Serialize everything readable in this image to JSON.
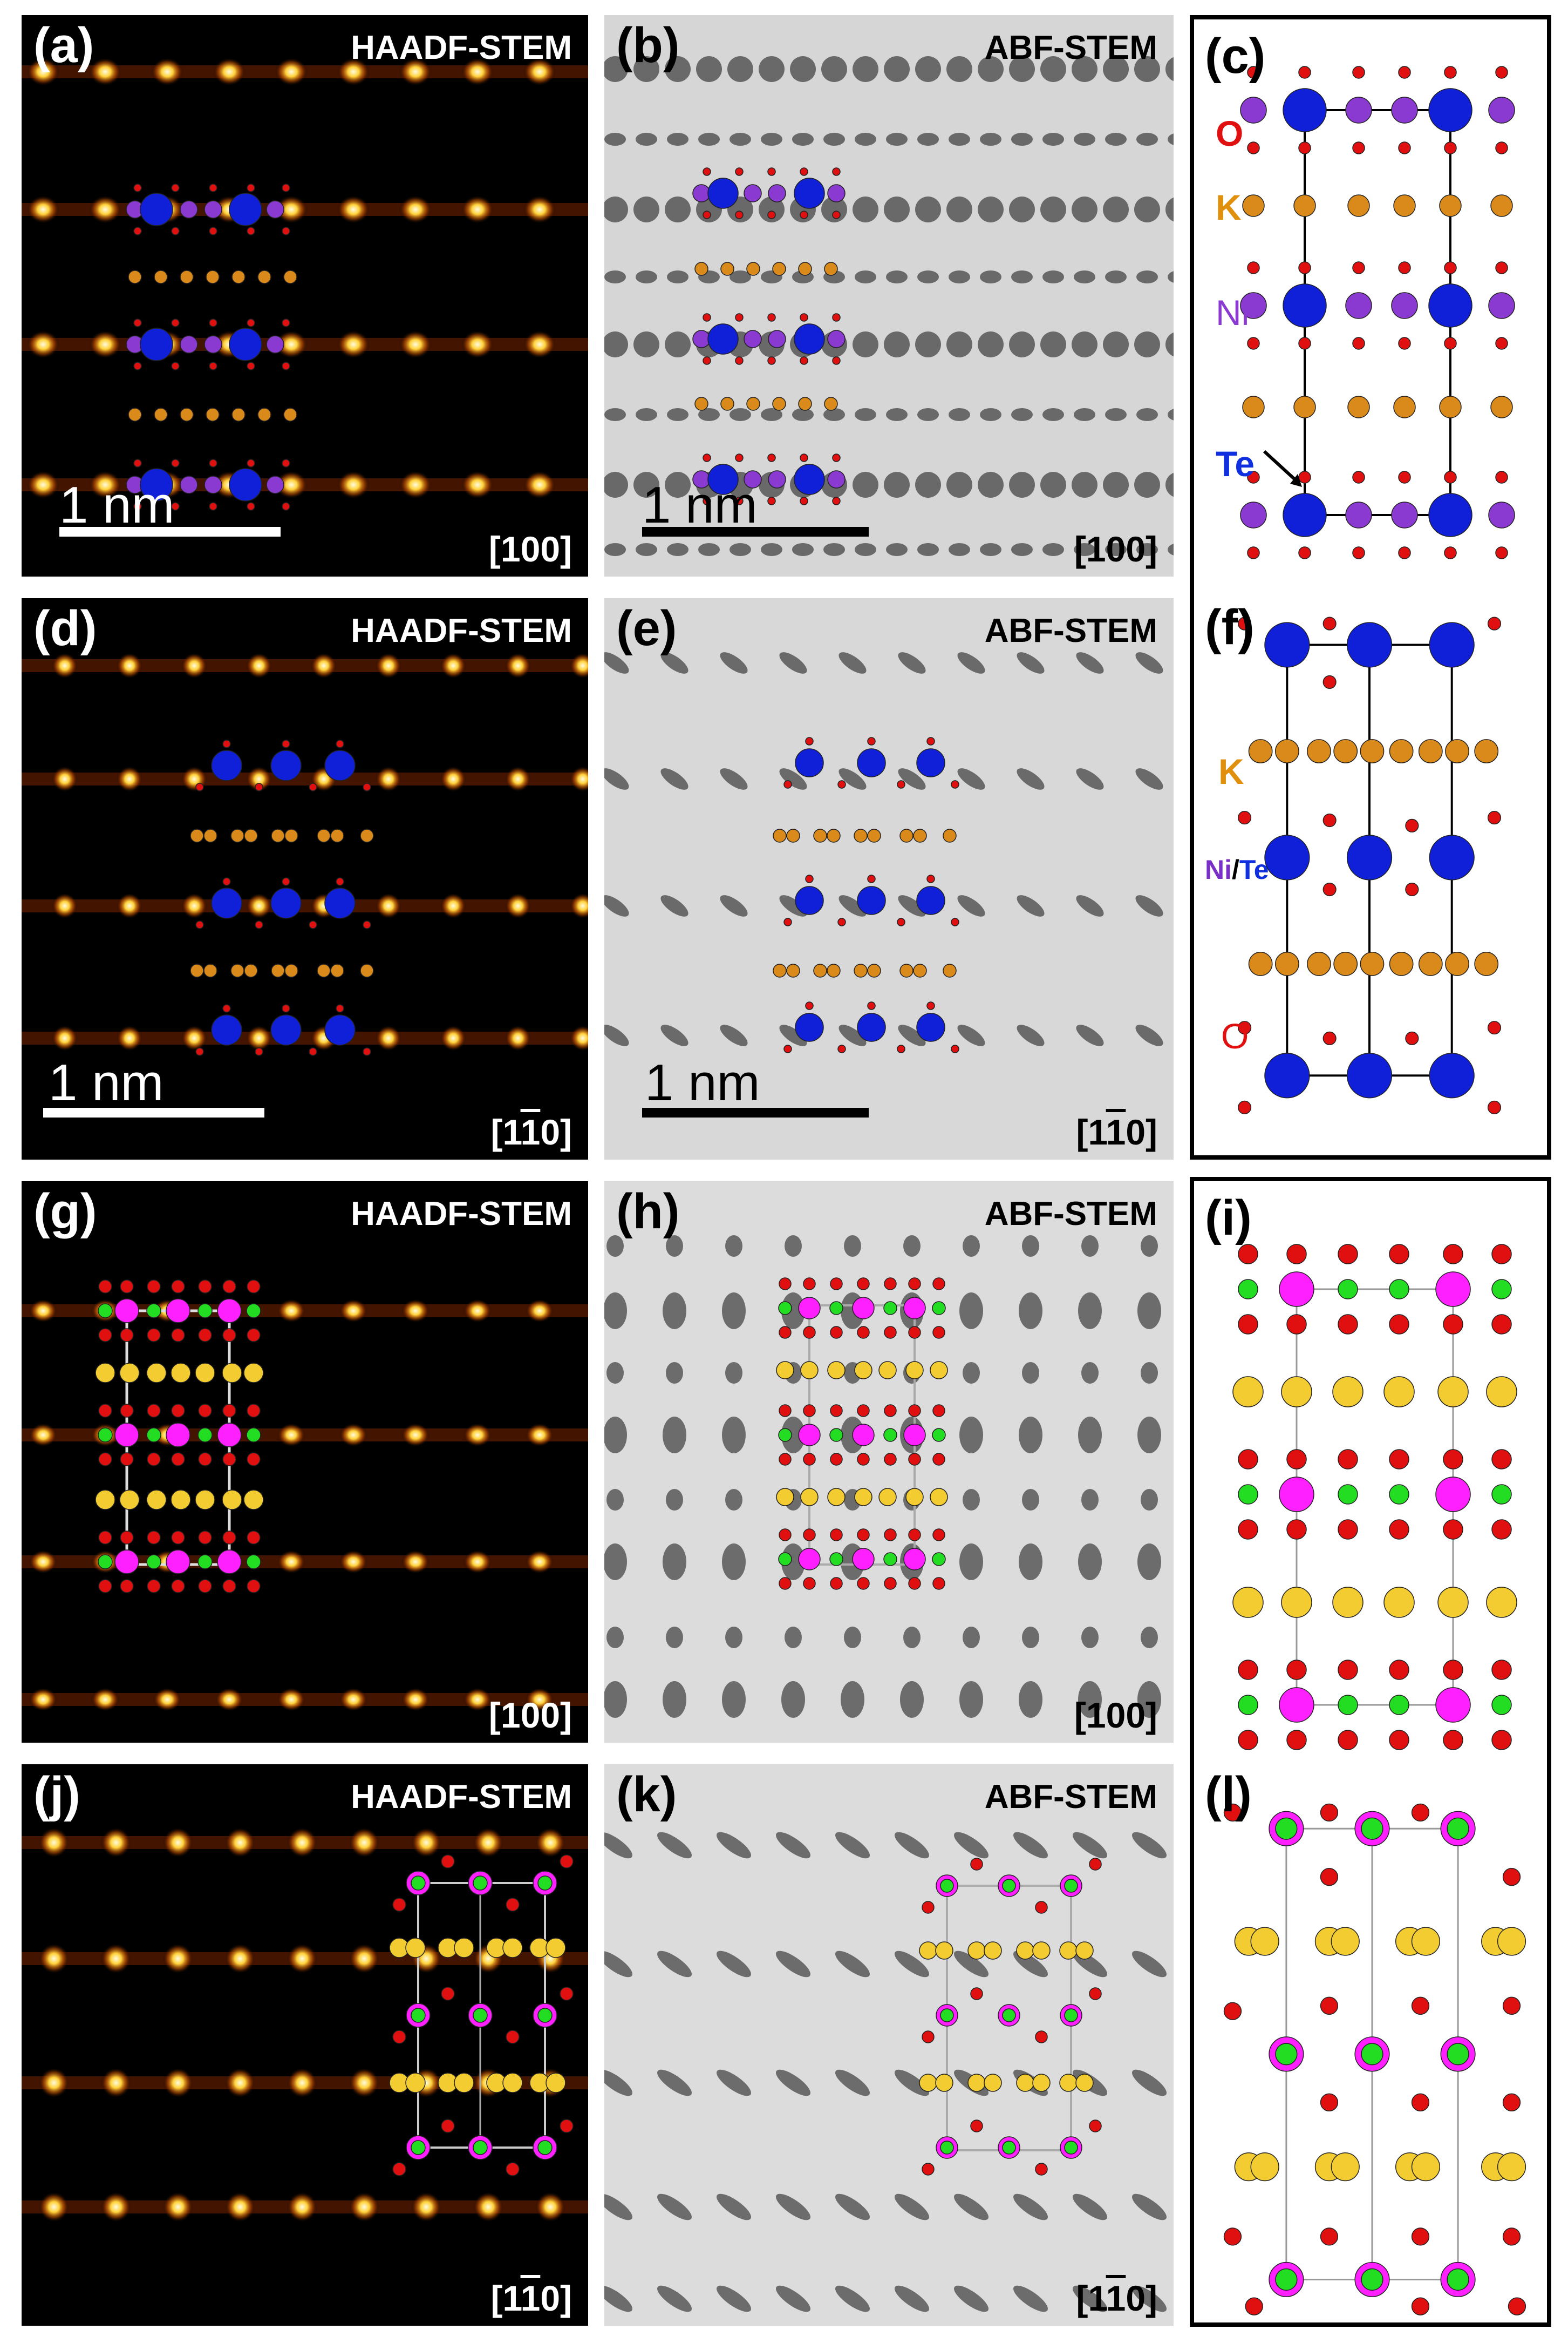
{
  "panels": {
    "a": {
      "label": "(a)",
      "mode": "HAADF-STEM",
      "direction": "[100]",
      "scale": "1 nm"
    },
    "b": {
      "label": "(b)",
      "mode": "ABF-STEM",
      "direction": "[100]",
      "scale": "1 nm"
    },
    "c": {
      "label": "(c)"
    },
    "d": {
      "label": "(d)",
      "mode": "HAADF-STEM",
      "direction_main": "[1",
      "direction_bar": "1",
      "direction_end": "0]",
      "scale": "1 nm"
    },
    "e": {
      "label": "(e)",
      "mode": "ABF-STEM",
      "direction_main": "[1",
      "direction_bar": "1",
      "direction_end": "0]",
      "scale": "1 nm"
    },
    "f": {
      "label": "(f)"
    },
    "g": {
      "label": "(g)",
      "mode": "HAADF-STEM",
      "direction": "[100]"
    },
    "h": {
      "label": "(h)",
      "mode": "ABF-STEM",
      "direction": "[100]"
    },
    "i": {
      "label": "(i)"
    },
    "j": {
      "label": "(j)",
      "mode": "HAADF-STEM",
      "direction_main": "[1",
      "direction_bar": "1",
      "direction_end": "0]"
    },
    "k": {
      "label": "(k)",
      "mode": "ABF-STEM",
      "direction_main": "[1",
      "direction_bar": "1",
      "direction_end": "0]"
    },
    "l": {
      "label": "(l)"
    }
  },
  "element_labels": {
    "c_O": "O",
    "c_K": "K",
    "c_Ni": "Ni",
    "c_Te": "Te",
    "f_K": "K",
    "f_NiTe_ni": "Ni",
    "f_NiTe_slash": "/",
    "f_NiTe_te": "Te",
    "f_O": "O"
  },
  "colors": {
    "O": "#e01010",
    "K": "#d98a1a",
    "Ni": "#8a3ad0",
    "Te": "#1020d8",
    "magenta_atom": "#ff20ff",
    "green_atom": "#22dd22",
    "yellow_atom": "#f2cc30",
    "haadf_spot": "#ffe060",
    "haadf_bg": "#000000",
    "abf_bg": "#d8d8d8"
  }
}
